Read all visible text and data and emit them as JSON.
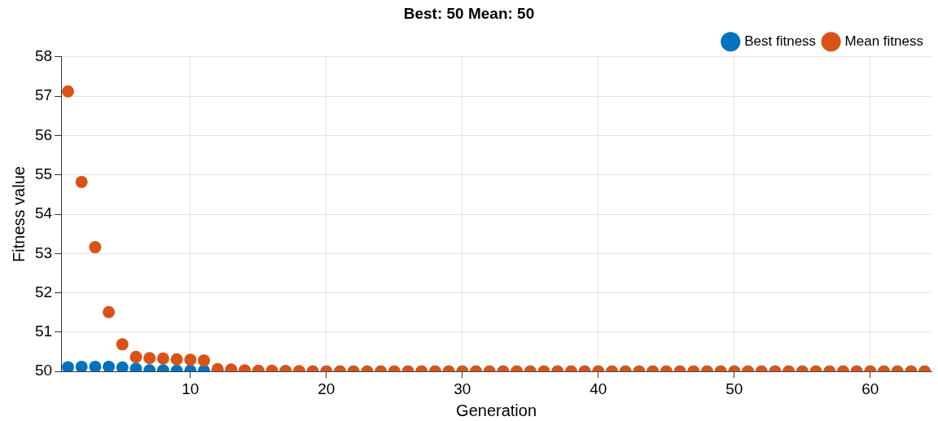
{
  "chart_data": {
    "type": "scatter",
    "title": "Best: 50 Mean: 50",
    "xlabel": "Generation",
    "ylabel": "Fitness value",
    "x": [
      1,
      2,
      3,
      4,
      5,
      6,
      7,
      8,
      9,
      10,
      11,
      12,
      13,
      14,
      15,
      16,
      17,
      18,
      19,
      20,
      21,
      22,
      23,
      24,
      25,
      26,
      27,
      28,
      29,
      30,
      31,
      32,
      33,
      34,
      35,
      36,
      37,
      38,
      39,
      40,
      41,
      42,
      43,
      44,
      45,
      46,
      47,
      48,
      49,
      50,
      51,
      52,
      53,
      54,
      55,
      56,
      57,
      58,
      59,
      60,
      61,
      62,
      63,
      64
    ],
    "series": [
      {
        "name": "Best fitness",
        "color": "#0072bd",
        "values": [
          50.11,
          50.12,
          50.12,
          50.12,
          50.1,
          50.07,
          50.03,
          50.03,
          50.02,
          50.02,
          50.02,
          50.02,
          50.02,
          50.01,
          50.01,
          50.01,
          50.01,
          50,
          50,
          50,
          50,
          50,
          50,
          50,
          50,
          50,
          50,
          50,
          50,
          50,
          50,
          50,
          50,
          50,
          50,
          50,
          50,
          50,
          50,
          50,
          50,
          50,
          50,
          50,
          50,
          50,
          50,
          50,
          50,
          50,
          50,
          50,
          50,
          50,
          50,
          50,
          50,
          50,
          50,
          50,
          50,
          50,
          50,
          50
        ]
      },
      {
        "name": "Mean fitness",
        "color": "#d95319",
        "values": [
          57.12,
          54.82,
          53.16,
          51.51,
          50.69,
          50.37,
          50.34,
          50.33,
          50.31,
          50.3,
          50.28,
          50.06,
          50.05,
          50.03,
          50.02,
          50.02,
          50.01,
          50.01,
          50,
          50,
          50,
          50,
          50,
          50,
          50,
          50,
          50,
          50,
          50,
          50,
          50,
          50,
          50,
          50,
          50,
          50,
          50,
          50,
          50,
          50,
          50,
          50,
          50,
          50,
          50,
          50,
          50,
          50,
          50,
          50,
          50,
          50,
          50,
          50,
          50,
          50,
          50,
          50,
          50,
          50,
          50,
          50,
          50,
          50
        ]
      }
    ],
    "xlim": [
      0.5,
      64.5
    ],
    "xticks": [
      10,
      20,
      30,
      40,
      50,
      60
    ],
    "ylim": [
      50,
      58
    ],
    "yticks": [
      50,
      51,
      52,
      53,
      54,
      55,
      56,
      57,
      58
    ],
    "grid": true,
    "legend": "top right",
    "marker": "circle"
  }
}
